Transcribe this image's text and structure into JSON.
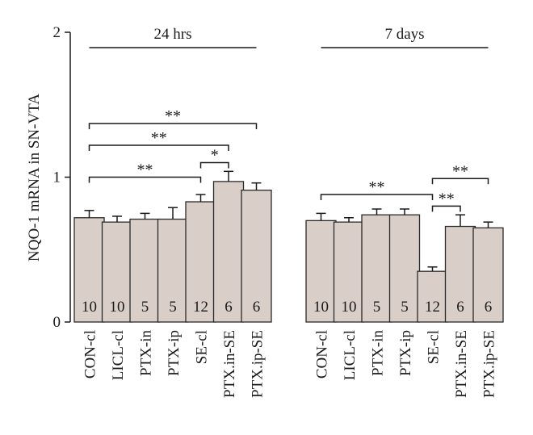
{
  "chart_data": {
    "type": "bar",
    "ylabel": "NQO-1 mRNA in SN-VTA",
    "ylim": [
      0,
      2
    ],
    "yticks": [
      0,
      1,
      2
    ],
    "bar_color": "#d9cec8",
    "groups": [
      {
        "label": "24 hrs",
        "categories": [
          "CON-cl",
          "LICL-cl",
          "PTX-in",
          "PTX-ip",
          "SE-cl",
          "PTX.in-SE",
          "PTX.ip-SE"
        ],
        "values": [
          0.72,
          0.69,
          0.71,
          0.71,
          0.83,
          0.97,
          0.91
        ],
        "errors": [
          0.05,
          0.04,
          0.04,
          0.08,
          0.05,
          0.07,
          0.05
        ],
        "n": [
          "10",
          "10",
          "5",
          "5",
          "12",
          "6",
          "6"
        ],
        "significance": [
          {
            "from": 0,
            "to": 4,
            "label": "**",
            "y": 1.0
          },
          {
            "from": 4,
            "to": 5,
            "label": "*",
            "y": 1.1
          },
          {
            "from": 0,
            "to": 5,
            "label": "**",
            "y": 1.22
          },
          {
            "from": 0,
            "to": 6,
            "label": "**",
            "y": 1.37
          }
        ]
      },
      {
        "label": "7 days",
        "categories": [
          "CON-cl",
          "LICL-cl",
          "PTX-in",
          "PTX-ip",
          "SE-cl",
          "PTX.in-SE",
          "PTX.ip-SE"
        ],
        "values": [
          0.7,
          0.69,
          0.74,
          0.74,
          0.35,
          0.66,
          0.65
        ],
        "errors": [
          0.05,
          0.03,
          0.04,
          0.04,
          0.03,
          0.08,
          0.04
        ],
        "n": [
          "10",
          "10",
          "5",
          "5",
          "12",
          "6",
          "6"
        ],
        "significance": [
          {
            "from": 0,
            "to": 4,
            "label": "**",
            "y": 0.88
          },
          {
            "from": 4,
            "to": 5,
            "label": "**",
            "y": 0.8
          },
          {
            "from": 4,
            "to": 6,
            "label": "**",
            "y": 0.99
          }
        ]
      }
    ]
  }
}
